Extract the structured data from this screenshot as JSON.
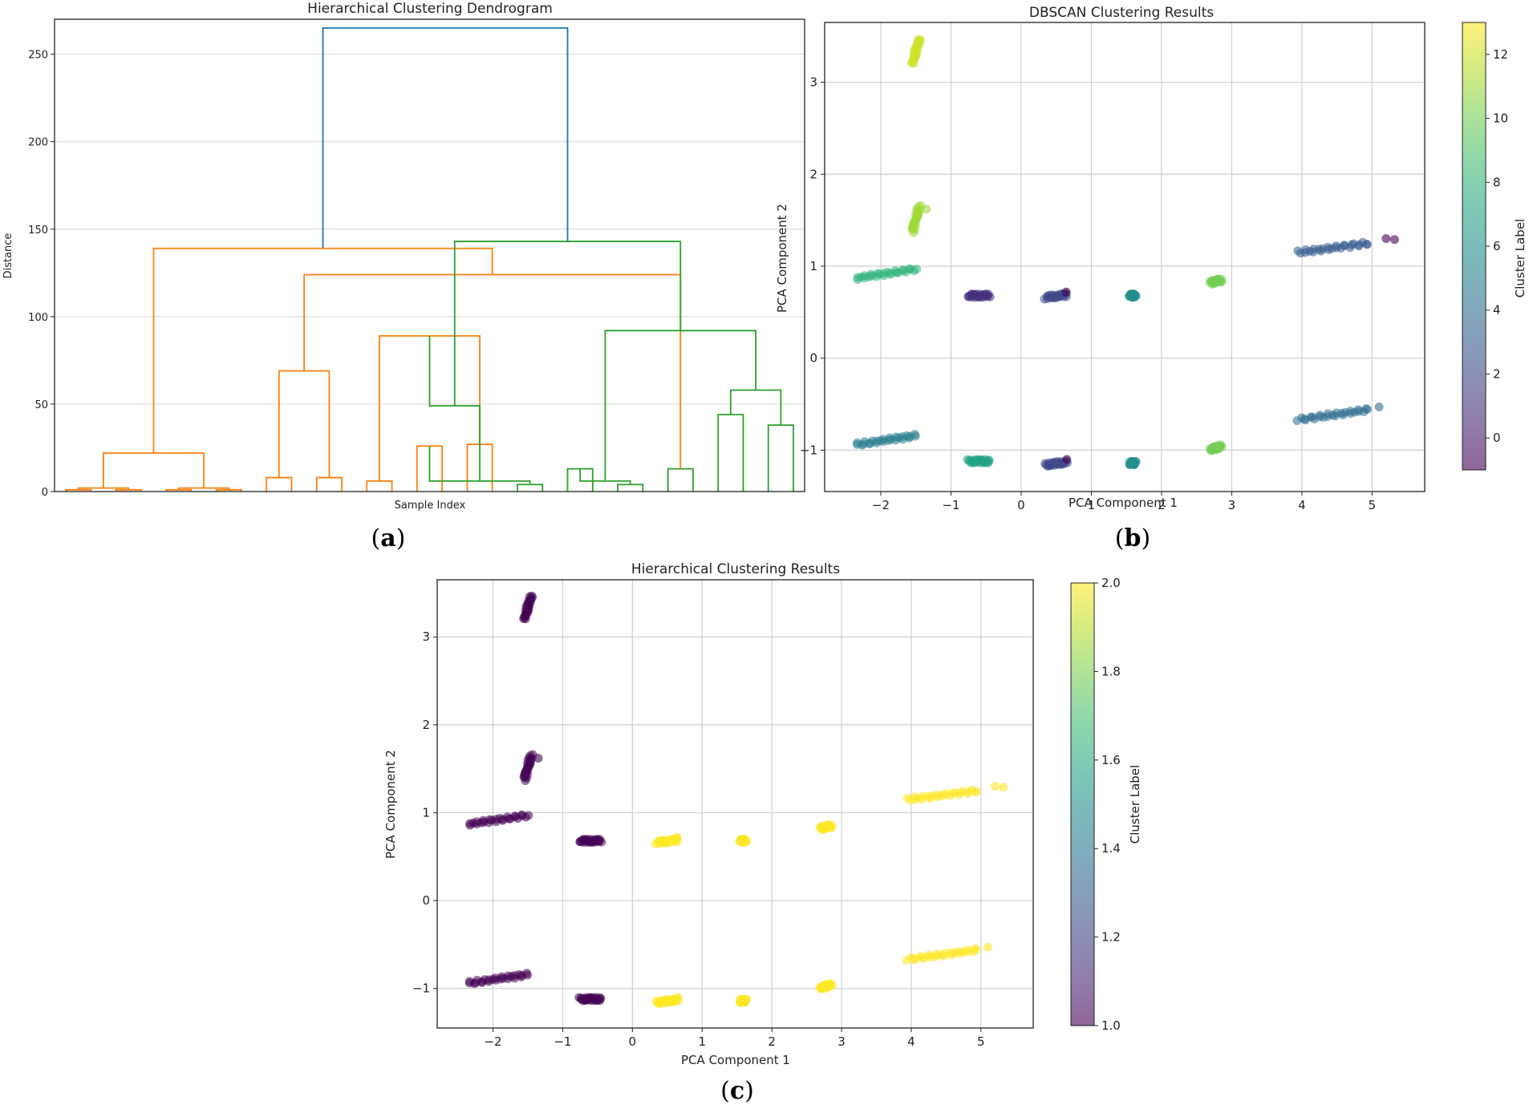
{
  "chart_data": [
    {
      "panel": "a",
      "panel_label": "a",
      "type": "dendrogram",
      "title": "Hierarchical Clustering Dendrogram",
      "xlabel": "Sample Index",
      "ylabel": "Distance",
      "ylim": [
        0,
        270
      ],
      "yticks": [
        0,
        50,
        100,
        150,
        200,
        250
      ],
      "grid": "y",
      "colors": {
        "root": "#1f77b4",
        "cluster1": "#ff7f0e",
        "cluster2": "#2ca02c"
      },
      "leaf_count": 30,
      "merges": [
        {
          "left": 0,
          "right": 1,
          "height": 1,
          "color": "cluster1"
        },
        {
          "left": 2,
          "right": 3,
          "height": 1,
          "color": "cluster1"
        },
        {
          "left": 4,
          "right": 5,
          "height": 1,
          "color": "cluster1"
        },
        {
          "left": 6,
          "right": 7,
          "height": 1,
          "color": "cluster1"
        },
        {
          "left": 8,
          "right": 9,
          "height": 8,
          "color": "cluster1"
        },
        {
          "left": 10,
          "right": 11,
          "height": 8,
          "color": "cluster1"
        },
        {
          "left": 12,
          "right": 13,
          "height": 6,
          "color": "cluster1"
        },
        {
          "left": 14,
          "right": 15,
          "height": 26,
          "color": "cluster1"
        },
        {
          "left": 16,
          "right": 17,
          "height": 27,
          "color": "cluster1"
        },
        {
          "left": 18,
          "right": 19,
          "height": 4,
          "color": "cluster2"
        },
        {
          "left": 20,
          "right": 21,
          "height": 13,
          "color": "cluster2"
        },
        {
          "left": 22,
          "right": 23,
          "height": 4,
          "color": "cluster2"
        },
        {
          "left": 24,
          "right": 25,
          "height": 13,
          "color": "cluster2"
        },
        {
          "left": 26,
          "right": 27,
          "height": 44,
          "color": "cluster2"
        },
        {
          "left": 28,
          "right": 29,
          "height": 38,
          "color": "cluster2"
        },
        {
          "left": 30,
          "right": 31,
          "height": 2,
          "color": "cluster1"
        },
        {
          "left": 32,
          "right": 33,
          "height": 2,
          "color": "cluster1"
        },
        {
          "left": 34,
          "right": 35,
          "height": 69,
          "color": "cluster1"
        },
        {
          "left": 36,
          "right": 38,
          "height": 89,
          "color": "cluster1"
        },
        {
          "left": 37,
          "right": 39,
          "height": 6,
          "color": "cluster2"
        },
        {
          "left": 40,
          "right": 41,
          "height": 6,
          "color": "cluster2"
        },
        {
          "left": 43,
          "right": 44,
          "height": 58,
          "color": "cluster2"
        },
        {
          "left": 45,
          "right": 46,
          "height": 22,
          "color": "cluster1"
        },
        {
          "left": 47,
          "right": 42,
          "height": 124,
          "color": "cluster1"
        },
        {
          "left": 48,
          "right": 49,
          "height": 49,
          "color": "cluster2"
        },
        {
          "left": 50,
          "right": 51,
          "height": 92,
          "color": "cluster2"
        },
        {
          "left": 52,
          "right": 53,
          "height": 139,
          "color": "cluster1"
        },
        {
          "left": 54,
          "right": 55,
          "height": 143,
          "color": "cluster2"
        },
        {
          "left": 56,
          "right": 57,
          "height": 265,
          "color": "root"
        }
      ]
    },
    {
      "panel": "b",
      "panel_label": "b",
      "type": "scatter",
      "title": "DBSCAN Clustering Results",
      "xlabel": "PCA Component 1",
      "ylabel": "PCA Component 2",
      "xlim": [
        -2.8,
        5.75
      ],
      "ylim": [
        -1.45,
        3.65
      ],
      "xticks": [
        -2,
        -1,
        0,
        1,
        2,
        3,
        4,
        5
      ],
      "yticks": [
        -1,
        0,
        1,
        2,
        3
      ],
      "grid": true,
      "colorbar": {
        "label": "Cluster Label",
        "min": -1,
        "max": 13,
        "ticks": [
          0,
          2,
          4,
          6,
          8,
          10,
          12
        ],
        "cmap": "viridis"
      },
      "clusters": [
        {
          "x0": -1.55,
          "y0": 3.2,
          "x1": -1.45,
          "y1": 3.47,
          "label": 12
        },
        {
          "x0": -1.55,
          "y0": 1.38,
          "x1": -1.45,
          "y1": 1.65,
          "label": 11
        },
        {
          "x0": -2.35,
          "y0": 0.87,
          "x1": -1.5,
          "y1": 0.97,
          "label": 8
        },
        {
          "x0": -2.35,
          "y0": -0.94,
          "x1": -1.5,
          "y1": -0.84,
          "label": 5
        },
        {
          "x0": -0.75,
          "y0": 0.68,
          "x1": -0.45,
          "y1": 0.68,
          "label": 1
        },
        {
          "x0": -0.75,
          "y0": -1.12,
          "x1": -0.45,
          "y1": -1.12,
          "label": 7
        },
        {
          "x0": 0.35,
          "y0": 0.66,
          "x1": 0.65,
          "y1": 0.69,
          "label": 2
        },
        {
          "x0": 0.35,
          "y0": -1.16,
          "x1": 0.65,
          "y1": -1.13,
          "label": 2
        },
        {
          "x0": 1.55,
          "y0": 0.68,
          "x1": 1.62,
          "y1": 0.68,
          "label": 6
        },
        {
          "x0": 1.55,
          "y0": -1.14,
          "x1": 1.62,
          "y1": -1.14,
          "label": 6
        },
        {
          "x0": 2.7,
          "y0": 0.82,
          "x1": 2.85,
          "y1": 0.85,
          "label": 10
        },
        {
          "x0": 2.7,
          "y0": -0.99,
          "x1": 2.85,
          "y1": -0.96,
          "label": 10
        },
        {
          "x0": 3.95,
          "y0": 1.15,
          "x1": 4.95,
          "y1": 1.25,
          "label": 3
        },
        {
          "x0": 3.95,
          "y0": -0.67,
          "x1": 4.95,
          "y1": -0.56,
          "label": 4
        }
      ],
      "outliers": [
        {
          "x": 5.2,
          "y": 1.3,
          "label": -1
        },
        {
          "x": 5.32,
          "y": 1.29,
          "label": -1
        },
        {
          "x": 0.64,
          "y": 0.72,
          "label": -1
        },
        {
          "x": 0.65,
          "y": -1.1,
          "label": -1
        },
        {
          "x": -1.35,
          "y": 1.62,
          "label": 11
        },
        {
          "x": 5.1,
          "y": -0.53,
          "label": 4
        }
      ]
    },
    {
      "panel": "c",
      "panel_label": "c",
      "type": "scatter",
      "title": "Hierarchical Clustering Results",
      "xlabel": "PCA Component 1",
      "ylabel": "PCA Component 2",
      "xlim": [
        -2.8,
        5.75
      ],
      "ylim": [
        -1.45,
        3.65
      ],
      "xticks": [
        -2,
        -1,
        0,
        1,
        2,
        3,
        4,
        5
      ],
      "yticks": [
        -1,
        0,
        1,
        2,
        3
      ],
      "grid": true,
      "colorbar": {
        "label": "Cluster Label",
        "min": 1.0,
        "max": 2.0,
        "ticks": [
          1.0,
          1.2,
          1.4,
          1.6,
          1.8,
          2.0
        ],
        "cmap": "viridis"
      },
      "clusters": [
        {
          "x0": -1.55,
          "y0": 3.2,
          "x1": -1.45,
          "y1": 3.47,
          "label": 1
        },
        {
          "x0": -1.55,
          "y0": 1.38,
          "x1": -1.45,
          "y1": 1.65,
          "label": 1
        },
        {
          "x0": -2.35,
          "y0": 0.87,
          "x1": -1.5,
          "y1": 0.97,
          "label": 1
        },
        {
          "x0": -2.35,
          "y0": -0.94,
          "x1": -1.5,
          "y1": -0.84,
          "label": 1
        },
        {
          "x0": -0.75,
          "y0": 0.68,
          "x1": -0.45,
          "y1": 0.68,
          "label": 1
        },
        {
          "x0": -0.75,
          "y0": -1.12,
          "x1": -0.45,
          "y1": -1.12,
          "label": 1
        },
        {
          "x0": 0.35,
          "y0": 0.66,
          "x1": 0.65,
          "y1": 0.69,
          "label": 2
        },
        {
          "x0": 0.35,
          "y0": -1.16,
          "x1": 0.65,
          "y1": -1.13,
          "label": 2
        },
        {
          "x0": 1.55,
          "y0": 0.68,
          "x1": 1.62,
          "y1": 0.68,
          "label": 2
        },
        {
          "x0": 1.55,
          "y0": -1.14,
          "x1": 1.62,
          "y1": -1.14,
          "label": 2
        },
        {
          "x0": 2.7,
          "y0": 0.82,
          "x1": 2.85,
          "y1": 0.85,
          "label": 2
        },
        {
          "x0": 2.7,
          "y0": -0.99,
          "x1": 2.85,
          "y1": -0.96,
          "label": 2
        },
        {
          "x0": 3.95,
          "y0": 1.15,
          "x1": 4.95,
          "y1": 1.25,
          "label": 2
        },
        {
          "x0": 3.95,
          "y0": -0.67,
          "x1": 4.95,
          "y1": -0.56,
          "label": 2
        }
      ],
      "outliers": [
        {
          "x": 5.2,
          "y": 1.3,
          "label": 2
        },
        {
          "x": 5.32,
          "y": 1.29,
          "label": 2
        },
        {
          "x": 0.64,
          "y": 0.72,
          "label": 2
        },
        {
          "x": 0.65,
          "y": -1.1,
          "label": 2
        },
        {
          "x": -1.35,
          "y": 1.62,
          "label": 1
        },
        {
          "x": 5.1,
          "y": -0.53,
          "label": 2
        }
      ]
    }
  ]
}
